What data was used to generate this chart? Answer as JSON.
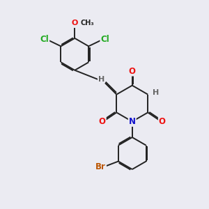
{
  "bg_color": "#ebebf2",
  "bond_color": "#222222",
  "bond_width": 1.4,
  "dbl_sep": 0.055,
  "atom_colors": {
    "O": "#ee1111",
    "N": "#1111cc",
    "Cl": "#22aa22",
    "Br": "#bb5500",
    "H": "#666666",
    "C": "#222222"
  },
  "fs": 8.5
}
